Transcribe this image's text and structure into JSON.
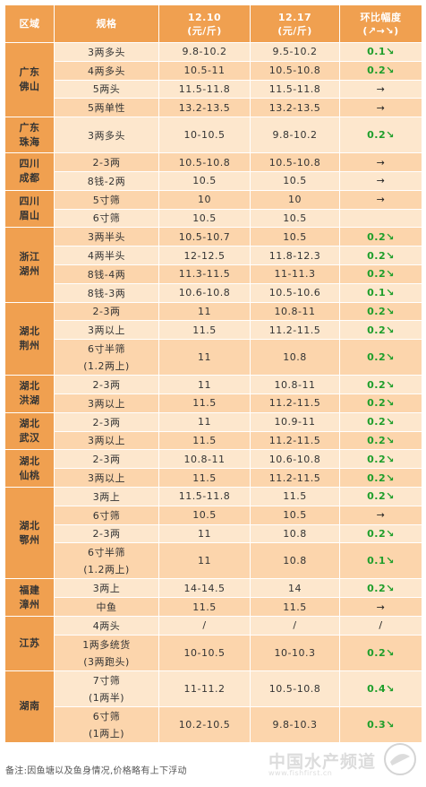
{
  "headers": {
    "region": "区域",
    "spec": "规格",
    "d1": "12.10",
    "d1_unit": "(元/斤)",
    "d2": "12.17",
    "d2_unit": "(元/斤)",
    "change": "环比幅度",
    "change_legend": "(↗→↘)"
  },
  "groups": [
    {
      "region": [
        "广东",
        "佛山"
      ],
      "rows": [
        {
          "spec": [
            "3两多头"
          ],
          "p1": "9.8-10.2",
          "p2": "9.5-10.2",
          "chg": "0.1",
          "dir": "down"
        },
        {
          "spec": [
            "4两多头"
          ],
          "p1": "10.5-11",
          "p2": "10.5-10.8",
          "chg": "0.2",
          "dir": "down"
        },
        {
          "spec": [
            "5两头"
          ],
          "p1": "11.5-11.8",
          "p2": "11.5-11.8",
          "chg": "",
          "dir": "flat"
        },
        {
          "spec": [
            "5两单性"
          ],
          "p1": "13.2-13.5",
          "p2": "13.2-13.5",
          "chg": "",
          "dir": "flat"
        }
      ]
    },
    {
      "region": [
        "广东",
        "珠海"
      ],
      "rows": [
        {
          "spec": [
            "3两多头"
          ],
          "p1": "10-10.5",
          "p2": "9.8-10.2",
          "chg": "0.2",
          "dir": "down",
          "tall": true
        }
      ]
    },
    {
      "region": [
        "四川",
        "成都"
      ],
      "rows": [
        {
          "spec": [
            "2-3两"
          ],
          "p1": "10.5-10.8",
          "p2": "10.5-10.8",
          "chg": "",
          "dir": "flat"
        },
        {
          "spec": [
            "8钱-2两"
          ],
          "p1": "10.5",
          "p2": "10.5",
          "chg": "",
          "dir": "flat"
        }
      ]
    },
    {
      "region": [
        "四川",
        "眉山"
      ],
      "rows": [
        {
          "spec": [
            "5寸筛"
          ],
          "p1": "10",
          "p2": "10",
          "chg": "",
          "dir": "flat"
        },
        {
          "spec": [
            "6寸筛"
          ],
          "p1": "10.5",
          "p2": "10.5",
          "chg": "",
          "dir": "none"
        }
      ]
    },
    {
      "region": [
        "浙江",
        "湖州"
      ],
      "rows": [
        {
          "spec": [
            "3两半头"
          ],
          "p1": "10.5-10.7",
          "p2": "10.5",
          "chg": "0.2",
          "dir": "down"
        },
        {
          "spec": [
            "4两半头"
          ],
          "p1": "12-12.5",
          "p2": "11.8-12.3",
          "chg": "0.2",
          "dir": "down"
        },
        {
          "spec": [
            "8钱-4两"
          ],
          "p1": "11.3-11.5",
          "p2": "11-11.3",
          "chg": "0.2",
          "dir": "down"
        },
        {
          "spec": [
            "8钱-3两"
          ],
          "p1": "10.6-10.8",
          "p2": "10.5-10.6",
          "chg": "0.1",
          "dir": "down"
        }
      ]
    },
    {
      "region": [
        "湖北",
        "荆州"
      ],
      "rows": [
        {
          "spec": [
            "2-3两"
          ],
          "p1": "11",
          "p2": "10.8-11",
          "chg": "0.2",
          "dir": "down"
        },
        {
          "spec": [
            "3两以上"
          ],
          "p1": "11.5",
          "p2": "11.2-11.5",
          "chg": "0.2",
          "dir": "down"
        },
        {
          "spec": [
            "6寸半筛",
            "(1.2两上)"
          ],
          "p1": "11",
          "p2": "10.8",
          "chg": "0.2",
          "dir": "down",
          "tall": true
        }
      ]
    },
    {
      "region": [
        "湖北",
        "洪湖"
      ],
      "rows": [
        {
          "spec": [
            "2-3两"
          ],
          "p1": "11",
          "p2": "10.8-11",
          "chg": "0.2",
          "dir": "down"
        },
        {
          "spec": [
            "3两以上"
          ],
          "p1": "11.5",
          "p2": "11.2-11.5",
          "chg": "0.2",
          "dir": "down"
        }
      ]
    },
    {
      "region": [
        "湖北",
        "武汉"
      ],
      "rows": [
        {
          "spec": [
            "2-3两"
          ],
          "p1": "11",
          "p2": "10.9-11",
          "chg": "0.2",
          "dir": "down"
        },
        {
          "spec": [
            "3两以上"
          ],
          "p1": "11.5",
          "p2": "11.2-11.5",
          "chg": "0.2",
          "dir": "down"
        }
      ]
    },
    {
      "region": [
        "湖北",
        "仙桃"
      ],
      "rows": [
        {
          "spec": [
            "2-3两"
          ],
          "p1": "10.8-11",
          "p2": "10.6-10.8",
          "chg": "0.2",
          "dir": "down"
        },
        {
          "spec": [
            "3两以上"
          ],
          "p1": "11.5",
          "p2": "11.2-11.5",
          "chg": "0.2",
          "dir": "down"
        }
      ]
    },
    {
      "region": [
        "湖北",
        "鄂州"
      ],
      "rows": [
        {
          "spec": [
            "3两上"
          ],
          "p1": "11.5-11.8",
          "p2": "11.5",
          "chg": "0.2",
          "dir": "down"
        },
        {
          "spec": [
            "6寸筛"
          ],
          "p1": "10.5",
          "p2": "10.5",
          "chg": "",
          "dir": "flat"
        },
        {
          "spec": [
            "2-3两"
          ],
          "p1": "11",
          "p2": "10.8",
          "chg": "0.2",
          "dir": "down"
        },
        {
          "spec": [
            "6寸半筛",
            "(1.2两上)"
          ],
          "p1": "11",
          "p2": "10.8",
          "chg": "0.1",
          "dir": "down",
          "tall": true
        }
      ]
    },
    {
      "region": [
        "福建",
        "漳州"
      ],
      "rows": [
        {
          "spec": [
            "3两上"
          ],
          "p1": "14-14.5",
          "p2": "14",
          "chg": "0.2",
          "dir": "down"
        },
        {
          "spec": [
            "中鱼"
          ],
          "p1": "11.5",
          "p2": "11.5",
          "chg": "",
          "dir": "flat"
        }
      ]
    },
    {
      "region": [
        "江苏"
      ],
      "rows": [
        {
          "spec": [
            "4两头"
          ],
          "p1": "/",
          "p2": "/",
          "chg": "/",
          "dir": "slash"
        },
        {
          "spec": [
            "1两多统货",
            "(3两跑头)"
          ],
          "p1": "10-10.5",
          "p2": "10-10.3",
          "chg": "0.2",
          "dir": "down",
          "tall": true
        }
      ]
    },
    {
      "region": [
        "湖南"
      ],
      "rows": [
        {
          "spec": [
            "7寸筛",
            "(1两半)"
          ],
          "p1": "11-11.2",
          "p2": "10.5-10.8",
          "chg": "0.4",
          "dir": "down",
          "tall": true
        },
        {
          "spec": [
            "6寸筛",
            "(1两上)"
          ],
          "p1": "10.2-10.5",
          "p2": "9.8-10.3",
          "chg": "0.3",
          "dir": "down",
          "tall": true
        }
      ]
    }
  ],
  "footnote": "备注:因鱼塘以及鱼身情况,价格略有上下浮动",
  "watermark": "中国水产频道",
  "watermark_url": "www.fishfirst.cn",
  "colors": {
    "header": "#f0a050",
    "row_light": "#fde7cd",
    "row_dark": "#fcd5ac",
    "down": "#1e9e2a"
  }
}
